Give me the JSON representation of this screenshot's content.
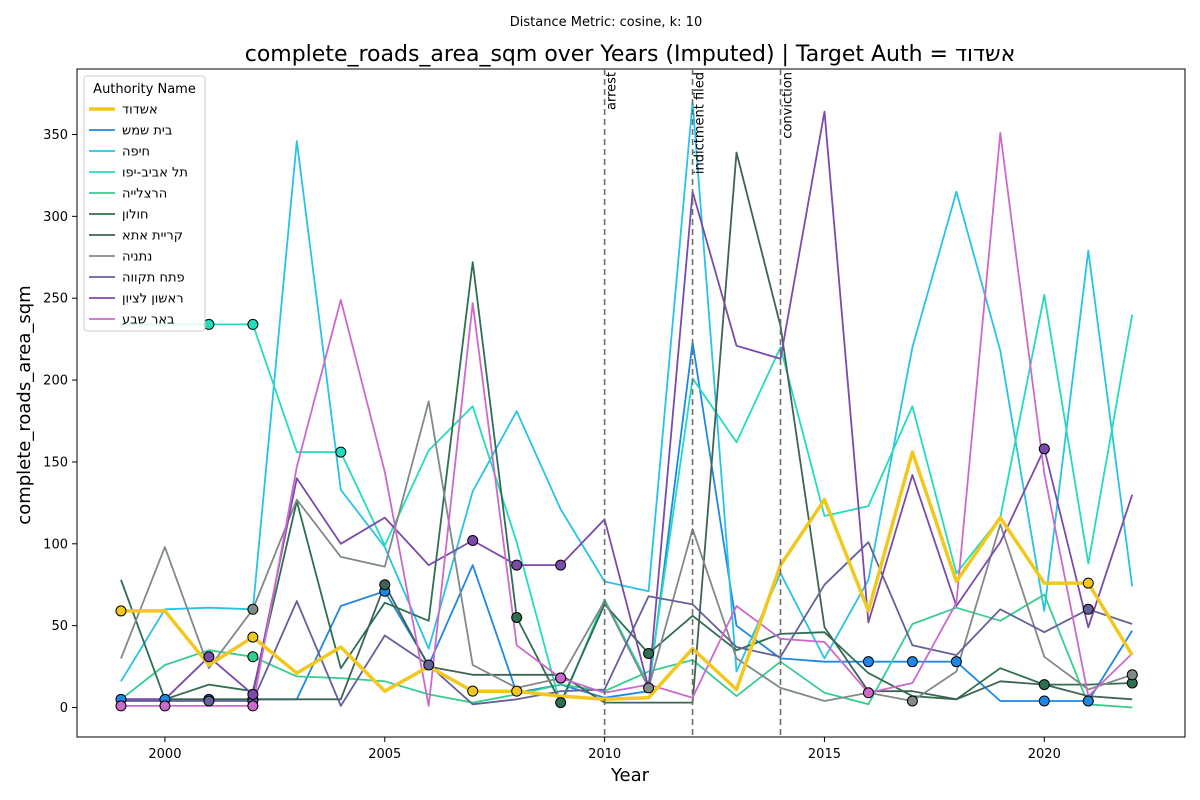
{
  "chart_data": {
    "type": "line",
    "subtitle": "Distance Metric: cosine, k: 10",
    "title": "complete_roads_area_sqm over Years (Imputed) | Target Auth = אשדוד",
    "xlabel": "Year",
    "ylabel": "complete_roads_area_sqm",
    "xlim": [
      1998,
      2023.2
    ],
    "ylim": [
      -18,
      390
    ],
    "xticks": [
      2000,
      2005,
      2010,
      2015,
      2020
    ],
    "yticks": [
      0,
      50,
      100,
      150,
      200,
      250,
      300,
      350
    ],
    "grid": false,
    "legend": {
      "title": "Authority Name",
      "placement": "top-left"
    },
    "events": [
      {
        "x": 2010,
        "label": "arrest"
      },
      {
        "x": 2012,
        "label": "indictment filed"
      },
      {
        "x": 2014,
        "label": "conviction"
      }
    ],
    "x": [
      1999,
      2000,
      2001,
      2002,
      2003,
      2004,
      2005,
      2006,
      2007,
      2008,
      2009,
      2010,
      2011,
      2012,
      2013,
      2014,
      2015,
      2016,
      2017,
      2018,
      2019,
      2020,
      2021,
      2022
    ],
    "series": [
      {
        "name": "אשדוד",
        "color": "#f2c81e",
        "target": true,
        "values": [
          59,
          59,
          26,
          43,
          21,
          37,
          10,
          25,
          10,
          10,
          7,
          5,
          6,
          36,
          11,
          87,
          127,
          59,
          156,
          77,
          116,
          76,
          76,
          32
        ],
        "imputed": [
          1999,
          2002,
          2007,
          2008,
          2021
        ]
      },
      {
        "name": "בית שמש",
        "color": "#1f88e5",
        "values": [
          5,
          5,
          5,
          5,
          5,
          62,
          71,
          26,
          87,
          9,
          14,
          6,
          10,
          223,
          50,
          30,
          28,
          28,
          28,
          28,
          4,
          4,
          4,
          47
        ],
        "imputed": [
          1999,
          2000,
          2001,
          2002,
          2005,
          2016,
          2017,
          2018,
          2020,
          2021
        ]
      },
      {
        "name": "חיפה",
        "color": "#29c2e8",
        "values": [
          16,
          60,
          61,
          60,
          346,
          133,
          98,
          36,
          132,
          181,
          121,
          77,
          71,
          370,
          22,
          82,
          30,
          78,
          220,
          315,
          218,
          59,
          279,
          74
        ],
        "imputed": []
      },
      {
        "name": "תל אביב-יפו",
        "color": "#22dcbe",
        "values": [
          234,
          234,
          234,
          234,
          156,
          156,
          99,
          157,
          184,
          101,
          1,
          66,
          14,
          201,
          162,
          220,
          117,
          123,
          184,
          82,
          116,
          252,
          88,
          240
        ],
        "imputed": [
          2001,
          2002,
          2004
        ]
      },
      {
        "name": "הרצלייה",
        "color": "#34cf8e",
        "values": [
          5,
          26,
          35,
          31,
          19,
          18,
          16,
          8,
          3,
          8,
          14,
          10,
          22,
          29,
          7,
          28,
          9,
          2,
          51,
          61,
          53,
          69,
          2,
          0
        ],
        "imputed": [
          2002
        ]
      },
      {
        "name": "חולון",
        "color": "#2f6e4e",
        "values": [
          78,
          5,
          14,
          10,
          126,
          24,
          64,
          53,
          272,
          55,
          3,
          63,
          33,
          56,
          35,
          45,
          46,
          21,
          7,
          5,
          24,
          14,
          14,
          15
        ],
        "imputed": [
          2008,
          2009,
          2011,
          2020,
          2022
        ]
      },
      {
        "name": "קריית אתא",
        "color": "#3f6355",
        "values": [
          5,
          5,
          5,
          5,
          5,
          5,
          75,
          25,
          20,
          20,
          20,
          3,
          3,
          3,
          339,
          233,
          49,
          10,
          10,
          5,
          16,
          14,
          7,
          5
        ],
        "imputed": [
          2005
        ]
      },
      {
        "name": "נתניה",
        "color": "#808a86",
        "values": [
          30,
          98,
          24,
          60,
          127,
          92,
          86,
          187,
          26,
          12,
          18,
          65,
          12,
          109,
          30,
          12,
          4,
          9,
          4,
          22,
          112,
          31,
          11,
          20
        ],
        "imputed": [
          2002,
          2009,
          2011,
          2017,
          2022
        ]
      },
      {
        "name": "פתח תקווה",
        "color": "#66609a",
        "values": [
          4,
          4,
          4,
          4,
          65,
          1,
          44,
          26,
          2,
          5,
          10,
          11,
          68,
          63,
          37,
          31,
          75,
          101,
          38,
          32,
          60,
          46,
          60,
          51
        ],
        "imputed": [
          2001,
          2002,
          2006,
          2021
        ]
      },
      {
        "name": "ראשון לציון",
        "color": "#7b4aab",
        "values": [
          5,
          5,
          31,
          8,
          140,
          100,
          116,
          87,
          102,
          87,
          87,
          115,
          12,
          315,
          221,
          213,
          364,
          52,
          142,
          62,
          101,
          158,
          49,
          130
        ],
        "imputed": [
          2001,
          2002,
          2007,
          2008,
          2009,
          2020
        ]
      },
      {
        "name": "באר שבע",
        "color": "#cc6acc",
        "values": [
          1,
          1,
          1,
          1,
          147,
          249,
          144,
          1,
          247,
          38,
          18,
          9,
          14,
          6,
          62,
          42,
          40,
          9,
          15,
          64,
          351,
          143,
          7,
          33
        ],
        "imputed": [
          1999,
          2000,
          2002,
          2009,
          2016
        ]
      }
    ]
  }
}
